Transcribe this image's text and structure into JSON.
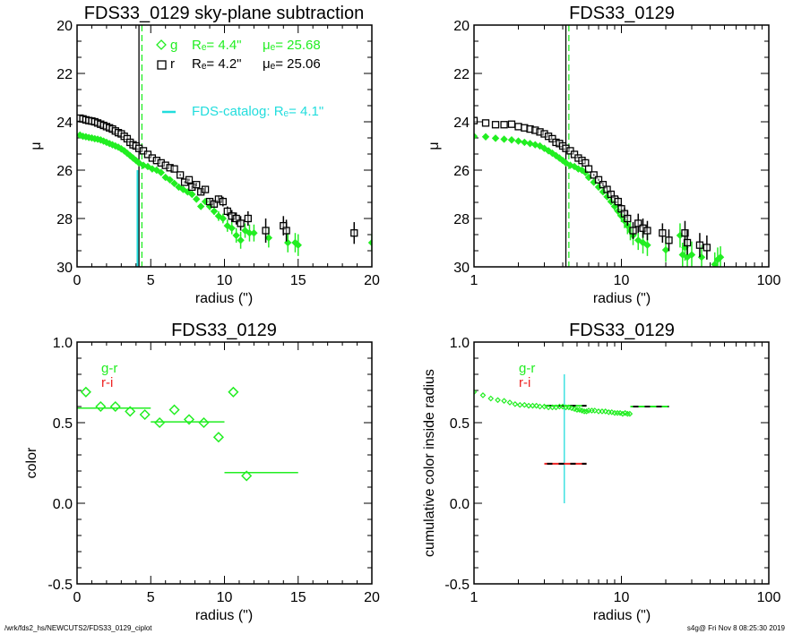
{
  "footer": {
    "left": "/wrk/fds2_hs/NEWCUTS2/FDS33_0129_ciplot",
    "right": "s4g@  Fri Nov  8 08:25:30 2019"
  },
  "colors": {
    "g": "#22ee22",
    "r": "#000000",
    "catalog": "#22dddd",
    "ri": "#ee2222"
  },
  "chart_data": [
    {
      "id": "tl",
      "type": "scatter",
      "title": "FDS33_0129 sky-plane subtraction",
      "xlabel": "radius (\")",
      "ylabel": "μ",
      "xscale": "linear",
      "xlim": [
        0,
        20
      ],
      "ylim": [
        30,
        20
      ],
      "xticks": [
        "0",
        "5",
        "10",
        "15",
        "20"
      ],
      "xtick_values": [
        0,
        5,
        10,
        15,
        20
      ],
      "yticks": [
        "20",
        "22",
        "24",
        "26",
        "28",
        "30"
      ],
      "ytick_values": [
        20,
        22,
        24,
        26,
        28,
        30
      ],
      "legend": {
        "g_symbol": "g",
        "g_Re": "Rₑ=   4.4\"",
        "g_mu": "μₑ= 25.68",
        "r_symbol": "r",
        "r_Re": "Rₑ=   4.2\"",
        "r_mu": "μₑ= 25.06",
        "catalog": "FDS-catalog: Rₑ=   4.1\""
      },
      "vlines": [
        {
          "name": "r-Re-line",
          "x": 4.2,
          "color": "r",
          "style": "solid",
          "y_from": 20,
          "y_to": 30
        },
        {
          "name": "g-Re-line",
          "x": 4.4,
          "color": "g",
          "style": "dashed",
          "y_from": 20,
          "y_to": 30
        },
        {
          "name": "catalog-Re-line",
          "x": 4.1,
          "color": "catalog",
          "style": "solid",
          "y_from": 26.0,
          "y_to": 30
        }
      ],
      "series": [
        {
          "name": "g",
          "marker": "diamond",
          "x": [
            0.2,
            0.4,
            0.6,
            0.8,
            1.0,
            1.2,
            1.4,
            1.6,
            1.8,
            2.0,
            2.2,
            2.4,
            2.6,
            2.8,
            3.0,
            3.2,
            3.4,
            3.6,
            3.8,
            4.0,
            4.2,
            4.5,
            4.8,
            5.1,
            5.4,
            5.7,
            6.0,
            6.3,
            6.6,
            6.9,
            7.2,
            7.5,
            7.8,
            8.1,
            8.4,
            8.7,
            9.0,
            9.3,
            9.6,
            9.9,
            10.2,
            10.5,
            10.8,
            11.1,
            11.4,
            11.7,
            12.0,
            13.0,
            14.3,
            14.8,
            15.0,
            20.0
          ],
          "y": [
            24.55,
            24.6,
            24.62,
            24.65,
            24.67,
            24.7,
            24.72,
            24.75,
            24.8,
            24.85,
            24.9,
            24.95,
            25.0,
            25.05,
            25.12,
            25.2,
            25.3,
            25.4,
            25.5,
            25.6,
            25.7,
            25.8,
            25.85,
            25.95,
            26.0,
            26.1,
            26.3,
            26.4,
            26.55,
            26.7,
            26.8,
            26.9,
            27.0,
            27.2,
            27.5,
            27.3,
            27.5,
            27.7,
            27.9,
            28.0,
            28.3,
            28.4,
            28.7,
            28.9,
            28.5,
            28.6,
            28.6,
            28.8,
            29.0,
            29.0,
            29.1,
            29.0
          ],
          "yerr": [
            0,
            0,
            0,
            0,
            0,
            0,
            0,
            0,
            0,
            0,
            0,
            0,
            0,
            0,
            0,
            0,
            0,
            0,
            0,
            0,
            0,
            0,
            0,
            0,
            0,
            0,
            0,
            0,
            0,
            0,
            0,
            0,
            0,
            0,
            0,
            0.1,
            0.15,
            0.15,
            0.2,
            0.2,
            0.25,
            0.25,
            0.3,
            0.35,
            0.3,
            0.35,
            0.35,
            0.4,
            0.4,
            0.4,
            0.45,
            0.35
          ]
        },
        {
          "name": "r",
          "marker": "square",
          "x": [
            0.2,
            0.4,
            0.6,
            0.8,
            1.0,
            1.2,
            1.4,
            1.6,
            1.8,
            2.0,
            2.2,
            2.4,
            2.6,
            2.8,
            3.0,
            3.2,
            3.4,
            3.6,
            3.8,
            4.0,
            4.2,
            4.5,
            4.8,
            5.1,
            5.4,
            5.7,
            6.0,
            6.3,
            6.6,
            7.0,
            7.3,
            7.6,
            7.8,
            8.1,
            8.4,
            8.7,
            9.0,
            9.3,
            9.6,
            9.9,
            10.2,
            10.5,
            10.8,
            11.1,
            11.6,
            12.8,
            14.0,
            14.2,
            18.8
          ],
          "y": [
            23.85,
            23.88,
            23.92,
            23.95,
            23.97,
            24.0,
            24.05,
            24.1,
            24.15,
            24.2,
            24.25,
            24.3,
            24.38,
            24.45,
            24.5,
            24.6,
            24.7,
            24.85,
            24.95,
            25.0,
            25.1,
            25.2,
            25.35,
            25.5,
            25.6,
            25.7,
            25.8,
            25.9,
            25.95,
            26.2,
            26.5,
            26.4,
            26.7,
            26.6,
            26.9,
            26.8,
            27.3,
            27.4,
            27.2,
            27.3,
            27.7,
            27.9,
            28.0,
            28.2,
            28.0,
            28.5,
            28.3,
            28.5,
            28.6
          ],
          "yerr": [
            0,
            0,
            0,
            0,
            0,
            0,
            0,
            0,
            0,
            0,
            0,
            0,
            0,
            0,
            0,
            0,
            0,
            0,
            0,
            0,
            0,
            0,
            0,
            0,
            0,
            0,
            0,
            0,
            0,
            0.05,
            0.05,
            0.05,
            0.08,
            0.08,
            0.1,
            0.1,
            0.15,
            0.15,
            0.15,
            0.2,
            0.2,
            0.25,
            0.25,
            0.3,
            0.3,
            0.5,
            0.4,
            0.45,
            0.45
          ]
        }
      ]
    },
    {
      "id": "tr",
      "type": "scatter",
      "title": "FDS33_0129",
      "xlabel": "radius (\")",
      "ylabel": "μ",
      "xscale": "log",
      "xlim": [
        1,
        100
      ],
      "ylim": [
        30,
        20
      ],
      "xticks": [
        "1",
        "10",
        "100"
      ],
      "xtick_values": [
        1,
        10,
        100
      ],
      "yticks": [
        "20",
        "22",
        "24",
        "26",
        "28",
        "30"
      ],
      "ytick_values": [
        20,
        22,
        24,
        26,
        28,
        30
      ],
      "vlines": [
        {
          "name": "r-Re-line",
          "x": 4.2,
          "color": "r",
          "style": "solid",
          "y_from": 20,
          "y_to": 30
        },
        {
          "name": "g-Re-line",
          "x": 4.4,
          "color": "g",
          "style": "dashed",
          "y_from": 20,
          "y_to": 30
        }
      ],
      "series": [
        {
          "name": "g",
          "marker": "dot",
          "x": [
            1.0,
            1.2,
            1.4,
            1.6,
            1.8,
            2.0,
            2.2,
            2.4,
            2.6,
            2.8,
            3.0,
            3.2,
            3.4,
            3.6,
            3.8,
            4.0,
            4.2,
            4.5,
            4.8,
            5.1,
            5.4,
            5.7,
            6.0,
            6.5,
            7.0,
            7.5,
            8.0,
            8.5,
            9.0,
            9.5,
            10.0,
            10.5,
            11.0,
            11.5,
            12.0,
            13.0,
            14.0,
            15.0,
            20.0,
            25.0,
            26.0,
            27.0,
            28.0,
            30.0,
            35.0,
            43.0,
            45.0,
            47.0
          ],
          "y": [
            24.6,
            24.62,
            24.68,
            24.72,
            24.75,
            24.8,
            24.85,
            24.9,
            24.95,
            25.0,
            25.1,
            25.2,
            25.3,
            25.4,
            25.5,
            25.6,
            25.7,
            25.8,
            25.85,
            25.95,
            26.0,
            26.1,
            26.3,
            26.5,
            26.7,
            26.9,
            27.1,
            27.3,
            27.5,
            27.7,
            27.9,
            28.1,
            28.3,
            28.5,
            28.7,
            28.9,
            29.0,
            29.1,
            29.3,
            28.7,
            29.5,
            29.2,
            29.6,
            29.5,
            29.6,
            29.9,
            29.7,
            29.6
          ],
          "yerr": [
            0,
            0,
            0,
            0,
            0,
            0,
            0,
            0,
            0,
            0,
            0,
            0,
            0,
            0,
            0,
            0,
            0,
            0,
            0,
            0,
            0,
            0,
            0,
            0.05,
            0.08,
            0.1,
            0.12,
            0.15,
            0.18,
            0.2,
            0.25,
            0.3,
            0.35,
            0.4,
            0.4,
            0.4,
            0.45,
            0.45,
            0.5,
            0.5,
            0.5,
            0.55,
            0.55,
            0.55,
            0.5,
            0.5,
            0.5,
            0.45
          ]
        },
        {
          "name": "r",
          "marker": "square",
          "x": [
            1.0,
            1.2,
            1.4,
            1.6,
            1.8,
            2.0,
            2.2,
            2.4,
            2.6,
            2.8,
            3.0,
            3.2,
            3.4,
            3.6,
            3.8,
            4.0,
            4.2,
            4.5,
            4.8,
            5.1,
            5.4,
            5.7,
            6.0,
            6.5,
            7.0,
            7.5,
            8.0,
            8.5,
            9.0,
            9.5,
            10.0,
            10.5,
            11.0,
            12.0,
            13.0,
            14.0,
            15.0,
            19.0,
            21.0,
            27.0,
            28.0,
            34.0,
            38.0
          ],
          "y": [
            23.95,
            24.05,
            24.12,
            24.12,
            24.1,
            24.2,
            24.25,
            24.3,
            24.35,
            24.42,
            24.5,
            24.6,
            24.7,
            24.85,
            24.9,
            25.0,
            25.1,
            25.2,
            25.35,
            25.5,
            25.6,
            25.7,
            25.95,
            26.2,
            26.4,
            26.6,
            26.8,
            27.0,
            27.2,
            27.3,
            27.6,
            27.8,
            28.0,
            28.5,
            28.2,
            28.4,
            28.5,
            28.6,
            28.9,
            28.6,
            29.0,
            29.1,
            29.2
          ],
          "yerr": [
            0,
            0,
            0,
            0,
            0,
            0,
            0,
            0,
            0,
            0,
            0,
            0,
            0,
            0,
            0,
            0,
            0,
            0,
            0,
            0,
            0,
            0,
            0,
            0.05,
            0.05,
            0.08,
            0.1,
            0.12,
            0.15,
            0.2,
            0.2,
            0.25,
            0.3,
            0.35,
            0.4,
            0.4,
            0.4,
            0.4,
            0.45,
            0.5,
            0.5,
            0.5,
            0.5
          ]
        }
      ]
    },
    {
      "id": "bl",
      "type": "scatter",
      "title": "FDS33_0129",
      "xlabel": "radius (\")",
      "ylabel": "color",
      "xscale": "linear",
      "xlim": [
        0,
        20
      ],
      "ylim": [
        -0.5,
        1.0
      ],
      "xticks": [
        "0",
        "5",
        "10",
        "15",
        "20"
      ],
      "xtick_values": [
        0,
        5,
        10,
        15,
        20
      ],
      "yticks": [
        "-0.5",
        "0.0",
        "0.5",
        "1.0"
      ],
      "ytick_values": [
        -0.5,
        0.0,
        0.5,
        1.0
      ],
      "legend": {
        "gr": "g-r",
        "ri": "r-i"
      },
      "series": [
        {
          "name": "g-r",
          "marker": "diamond-large",
          "x": [
            0.6,
            1.6,
            2.6,
            3.6,
            4.6,
            5.6,
            6.6,
            7.6,
            8.6,
            9.6,
            10.6,
            11.5
          ],
          "y": [
            0.69,
            0.6,
            0.6,
            0.57,
            0.55,
            0.5,
            0.58,
            0.52,
            0.5,
            0.41,
            0.69,
            0.17
          ]
        }
      ],
      "segments": [
        {
          "name": "g-r-bin-mean",
          "x0": 0,
          "x1": 5,
          "y": 0.59
        },
        {
          "name": "g-r-bin-mean",
          "x0": 5,
          "x1": 10,
          "y": 0.505
        },
        {
          "name": "g-r-bin-mean",
          "x0": 10,
          "x1": 15,
          "y": 0.19
        }
      ]
    },
    {
      "id": "br",
      "type": "scatter",
      "title": "FDS33_0129",
      "xlabel": "radius (\")",
      "ylabel": "cumulative color inside radius",
      "xscale": "log",
      "xlim": [
        1,
        100
      ],
      "ylim": [
        -0.5,
        1.0
      ],
      "xticks": [
        "1",
        "10",
        "100"
      ],
      "xtick_values": [
        1,
        10,
        100
      ],
      "yticks": [
        "-0.5",
        "0.0",
        "0.5",
        "1.0"
      ],
      "ytick_values": [
        -0.5,
        0.0,
        0.5,
        1.0
      ],
      "legend": {
        "gr": "g-r",
        "ri": "r-i"
      },
      "series": [
        {
          "name": "g-r",
          "marker": "circle-small",
          "x": [
            1.0,
            1.15,
            1.3,
            1.45,
            1.6,
            1.75,
            1.9,
            2.05,
            2.2,
            2.35,
            2.5,
            2.65,
            2.8,
            3.0,
            3.2,
            3.4,
            3.6,
            3.8,
            4.0,
            4.2,
            4.4,
            4.6,
            4.8,
            5.0,
            5.2,
            5.4,
            5.6,
            5.8,
            6.0,
            6.3,
            6.6,
            7.0,
            7.4,
            7.8,
            8.2,
            8.6,
            9.0,
            9.4,
            9.8,
            10.2,
            10.6,
            11.0,
            11.4
          ],
          "y": [
            0.69,
            0.67,
            0.65,
            0.64,
            0.635,
            0.625,
            0.615,
            0.61,
            0.61,
            0.605,
            0.605,
            0.605,
            0.6,
            0.6,
            0.595,
            0.595,
            0.595,
            0.6,
            0.6,
            0.595,
            0.595,
            0.59,
            0.585,
            0.58,
            0.58,
            0.575,
            0.57,
            0.57,
            0.575,
            0.575,
            0.575,
            0.57,
            0.57,
            0.57,
            0.565,
            0.565,
            0.56,
            0.56,
            0.56,
            0.555,
            0.56,
            0.555,
            0.555
          ]
        }
      ],
      "segments": [
        {
          "name": "g-r-Re-cumulative",
          "x0": 3.0,
          "x1": 5.8,
          "y": 0.605,
          "color": "g"
        },
        {
          "name": "g-r-total",
          "x0": 11.5,
          "x1": 21.0,
          "y": 0.6,
          "color": "g"
        },
        {
          "name": "r-i-Re-cumulative",
          "x0": 3.0,
          "x1": 5.8,
          "y": 0.245,
          "color": "ri"
        }
      ],
      "vlines": [
        {
          "name": "catalog-Re-line",
          "x": 4.1,
          "color": "catalog",
          "style": "solid",
          "y_from": 0.0,
          "y_to": 0.8
        }
      ]
    }
  ]
}
